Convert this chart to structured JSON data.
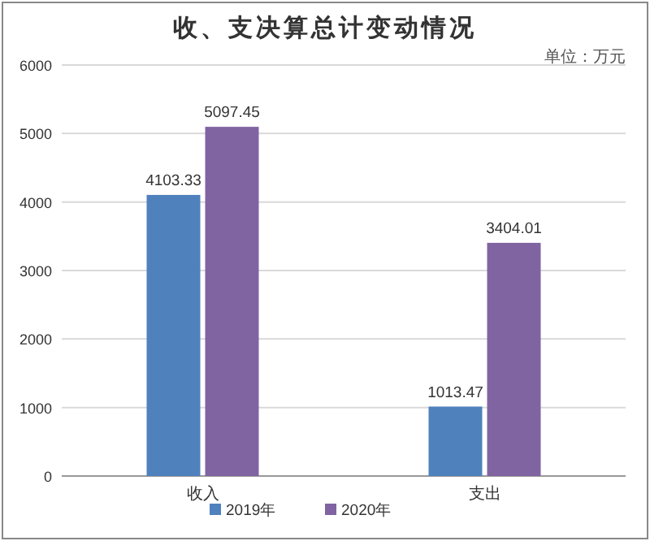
{
  "chart_data": {
    "type": "bar",
    "title": "收、支决算总计变动情况",
    "subtitle": "单位：万元",
    "categories": [
      "收入",
      "支出"
    ],
    "series": [
      {
        "name": "2019年",
        "color": "#4f81bd",
        "values": [
          4103.33,
          1013.47
        ]
      },
      {
        "name": "2020年",
        "color": "#8064a2",
        "values": [
          5097.45,
          3404.01
        ]
      }
    ],
    "ylim": [
      0,
      6000
    ],
    "yticks": [
      0,
      1000,
      2000,
      3000,
      4000,
      5000,
      6000
    ],
    "grid": "y",
    "legend": "bottom",
    "data_labels": true
  }
}
